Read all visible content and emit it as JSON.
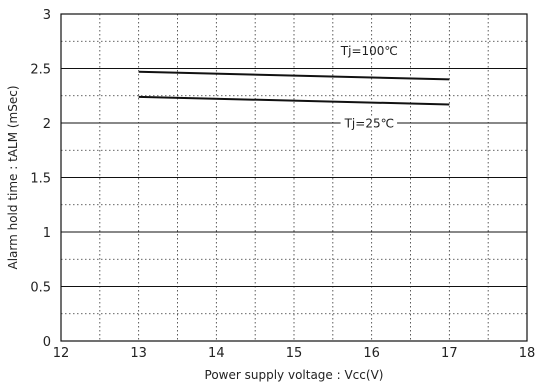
{
  "chart_data": {
    "type": "line",
    "xlabel": "Power supply voltage : Vcc(V)",
    "ylabel": "Alarm hold time : tALM (mSec)",
    "xlim": [
      12,
      18
    ],
    "ylim": [
      0,
      3
    ],
    "x_ticks": [
      "12",
      "13",
      "14",
      "15",
      "16",
      "17",
      "18"
    ],
    "y_ticks": [
      "0",
      "0.5",
      "1",
      "1.5",
      "2",
      "2.5",
      "3"
    ],
    "grid": true,
    "series": [
      {
        "name": "Tj=100℃",
        "x": [
          13,
          17
        ],
        "y": [
          2.47,
          2.4
        ]
      },
      {
        "name": "Tj=25℃",
        "x": [
          13,
          17
        ],
        "y": [
          2.24,
          2.17
        ]
      }
    ]
  }
}
